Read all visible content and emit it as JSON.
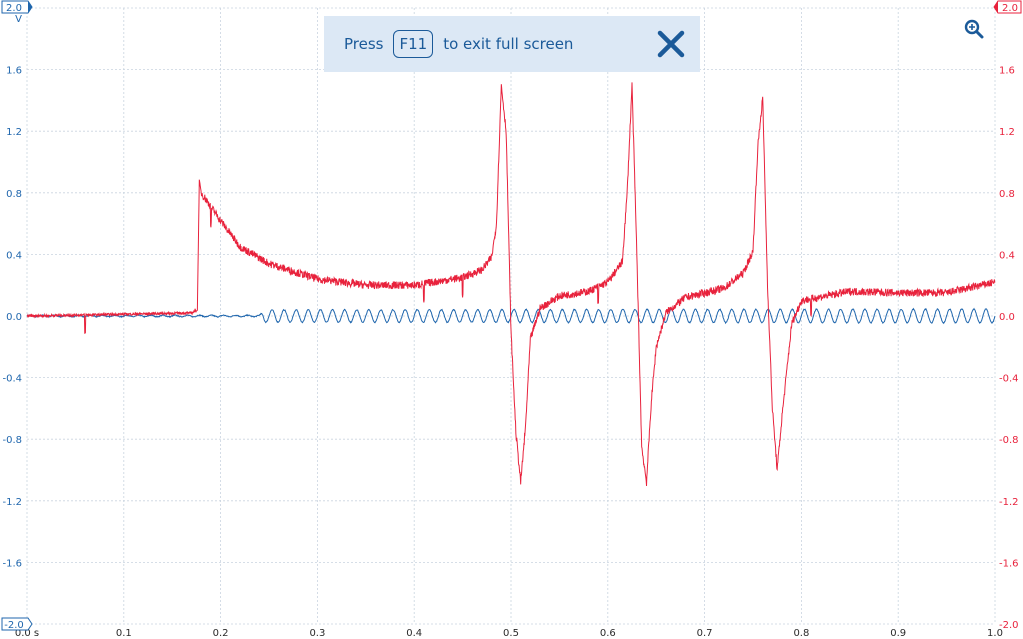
{
  "banner": {
    "prefix": "Press",
    "key": "F11",
    "suffix": "to exit full screen",
    "close_icon": "close-icon"
  },
  "toolbar": {
    "zoom_icon": "zoom-in-icon"
  },
  "colors": {
    "channel_a": "#1f66ad",
    "channel_b": "#e8223c",
    "grid": "#c9d4df",
    "banner_bg": "#dce8f5",
    "banner_fg": "#1b5a99"
  },
  "chart_data": {
    "type": "line",
    "title": "",
    "xlabel": "",
    "ylabel": "V",
    "xlim": [
      0,
      1.0
    ],
    "ylim": [
      -2.0,
      2.0
    ],
    "grid": true,
    "x_ticks": [
      "0.0 s",
      "0.1",
      "0.2",
      "0.3",
      "0.4",
      "0.5",
      "0.6",
      "0.7",
      "0.8",
      "0.9",
      "1.0"
    ],
    "y_ticks_left": [
      "2.0",
      "1.6",
      "1.2",
      "0.8",
      "0.4",
      "0.0",
      "-0.4",
      "-0.8",
      "-1.2",
      "-1.6",
      "-2.0"
    ],
    "y_ticks_right": [
      "2.0",
      "1.6",
      "1.2",
      "0.8",
      "0.4",
      "0.0",
      "-0.4",
      "-0.8",
      "-1.2",
      "-1.6",
      "-2.0"
    ],
    "left_axis_unit": "V",
    "series": [
      {
        "channel": "A",
        "color": "#1f66ad",
        "axis": "left",
        "style": "oscillation",
        "x": [
          0.0,
          0.24,
          0.245,
          1.0
        ],
        "baseline": [
          0.0,
          0.0,
          0.0,
          0.0
        ],
        "amplitude": [
          0.005,
          0.005,
          0.04,
          0.045
        ],
        "frequency_hz": 80
      },
      {
        "channel": "B",
        "color": "#e8223c",
        "axis": "right",
        "x": [
          0.0,
          0.17,
          0.176,
          0.178,
          0.18,
          0.2,
          0.22,
          0.25,
          0.3,
          0.35,
          0.4,
          0.45,
          0.47,
          0.48,
          0.485,
          0.49,
          0.495,
          0.5,
          0.505,
          0.51,
          0.515,
          0.52,
          0.53,
          0.55,
          0.58,
          0.6,
          0.615,
          0.62,
          0.625,
          0.63,
          0.635,
          0.64,
          0.645,
          0.65,
          0.66,
          0.68,
          0.7,
          0.72,
          0.74,
          0.75,
          0.755,
          0.76,
          0.765,
          0.77,
          0.775,
          0.78,
          0.79,
          0.8,
          0.85,
          0.9,
          0.95,
          1.0
        ],
        "y": [
          0.0,
          0.02,
          0.04,
          0.88,
          0.8,
          0.62,
          0.45,
          0.34,
          0.24,
          0.2,
          0.2,
          0.25,
          0.3,
          0.38,
          0.6,
          1.5,
          1.2,
          -0.1,
          -0.75,
          -1.08,
          -0.72,
          -0.15,
          0.05,
          0.13,
          0.16,
          0.22,
          0.35,
          0.8,
          1.5,
          0.4,
          -0.85,
          -1.08,
          -0.55,
          -0.2,
          0.02,
          0.12,
          0.15,
          0.18,
          0.28,
          0.42,
          1.1,
          1.42,
          0.2,
          -0.6,
          -1.0,
          -0.65,
          -0.05,
          0.1,
          0.16,
          0.15,
          0.15,
          0.22
        ]
      }
    ],
    "noise": {
      "channel": "B",
      "spikes_at": [
        0.06,
        0.19,
        0.41,
        0.45,
        0.59,
        0.81
      ]
    }
  }
}
